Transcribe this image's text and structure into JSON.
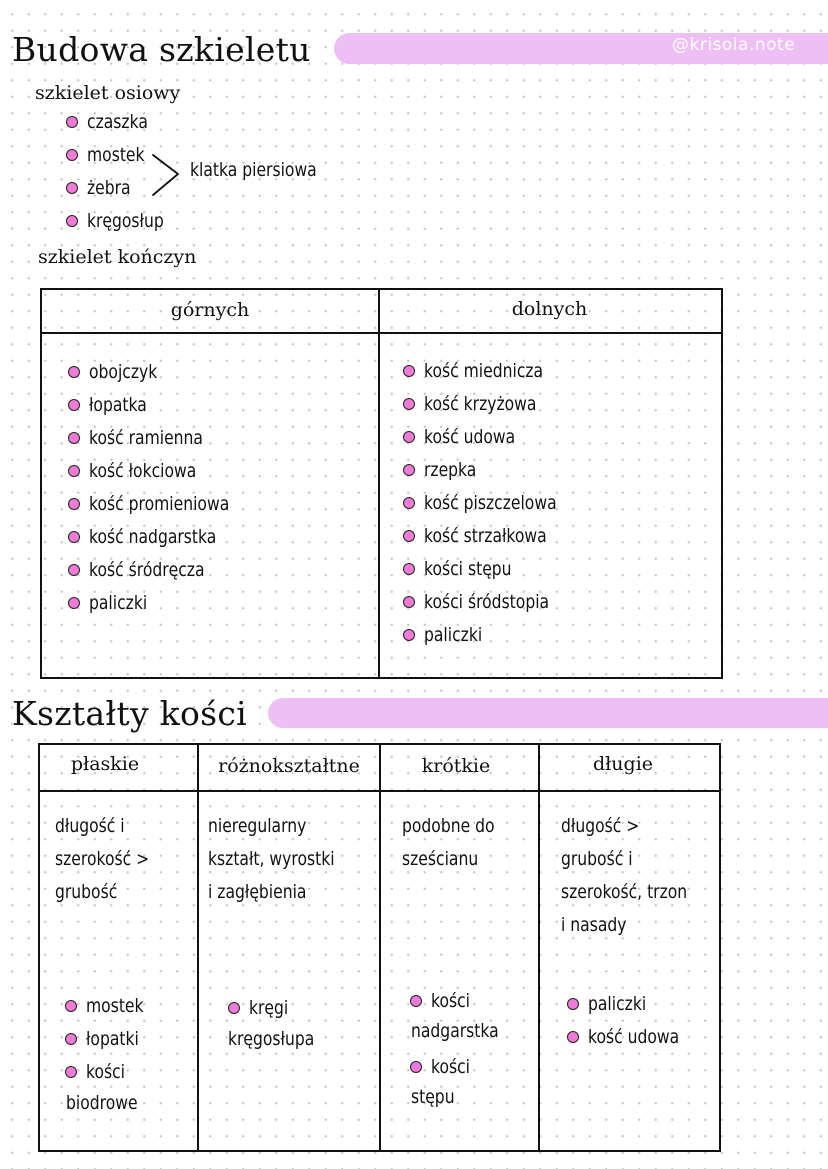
{
  "watermark": "@krisola.note",
  "section1": {
    "title": "Budowa szkieletu",
    "axial": {
      "heading": "szkielet osiowy",
      "items": [
        "czaszka",
        "mostek",
        "żebra",
        "kręgosłup"
      ],
      "brace_label": "klatka piersiowa"
    },
    "limbs": {
      "heading": "szkielet kończyn",
      "columns": [
        {
          "header": "górnych",
          "items": [
            "obojczyk",
            "łopatka",
            "kość ramienna",
            "kość łokciowa",
            "kość promieniowa",
            "kość nadgarstka",
            "kość śródręcza",
            "paliczki"
          ]
        },
        {
          "header": "dolnych",
          "items": [
            "kość miednicza",
            "kość krzyżowa",
            "kość udowa",
            "rzepka",
            "kość piszczelowa",
            "kość strzałkowa",
            "kości stępu",
            "kości śródstopia",
            "paliczki"
          ]
        }
      ]
    }
  },
  "section2": {
    "title": "Kształty kości",
    "columns": [
      {
        "header": "płaskie",
        "description": [
          "długość i",
          "szerokość >",
          "grubość"
        ],
        "examples": [
          "mostek",
          "łopatki",
          "kości",
          "biodrowe"
        ]
      },
      {
        "header": "różnokształtne",
        "description": [
          "nieregularny",
          "kształt, wyrostki",
          "i zagłębienia"
        ],
        "examples": [
          "kręgi",
          "kręgosłupa"
        ]
      },
      {
        "header": "krótkie",
        "description": [
          "podobne do",
          "sześcianu"
        ],
        "examples": [
          "kości",
          "nadgarstka",
          "kości",
          "stępu"
        ]
      },
      {
        "header": "długie",
        "description": [
          "długość >",
          "grubość i",
          "szerokość, trzon",
          "i nasady"
        ],
        "examples": [
          "paliczki",
          "kość udowa"
        ]
      }
    ]
  },
  "colors": {
    "accent": "#eebff5",
    "bullet": "#f07ad8",
    "ink": "#111111"
  }
}
